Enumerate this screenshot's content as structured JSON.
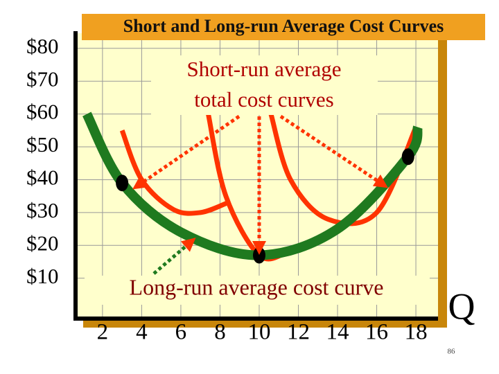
{
  "chart_data": {
    "type": "line",
    "title": "Short and Long-run Average Cost Curves",
    "x_label": "Q",
    "annotations": {
      "short_run": [
        "Short-run average",
        "total cost curves"
      ],
      "long_run": "Long-run average cost curve"
    },
    "page_number": "86",
    "xlim": [
      0.73,
      19.13
    ],
    "ylim": [
      -2.3,
      84.6
    ],
    "xticks": [
      2,
      4,
      6,
      8,
      10,
      12,
      14,
      16,
      18
    ],
    "yticks": [
      {
        "value": 80,
        "label": "$80"
      },
      {
        "value": 70,
        "label": "$70"
      },
      {
        "value": 60,
        "label": "$60"
      },
      {
        "value": 50,
        "label": "$50"
      },
      {
        "value": 40,
        "label": "$40"
      },
      {
        "value": 30,
        "label": "$30"
      },
      {
        "value": 20,
        "label": "$20"
      },
      {
        "value": 10,
        "label": "$10"
      }
    ],
    "grid": true,
    "series": [
      {
        "color": "#ff3300",
        "x": [
          3,
          4,
          5.6,
          7,
          8.4
        ],
        "values": [
          55,
          40,
          31,
          30,
          33
        ]
      },
      {
        "color": "#ff3300",
        "x": [
          7.4,
          8.3,
          10,
          11.5,
          12.6
        ],
        "values": [
          60,
          35,
          17,
          18,
          21
        ]
      },
      {
        "color": "#ff3300",
        "x": [
          10.6,
          11.6,
          13.5,
          16,
          18
        ],
        "values": [
          60,
          40,
          28,
          30,
          56
        ]
      },
      {
        "color": "#1f7a1f",
        "x": [
          1.2,
          3,
          6,
          10,
          14,
          17.6,
          18.1
        ],
        "values": [
          60,
          39,
          24,
          17,
          25,
          47,
          56
        ]
      }
    ],
    "dots": {
      "color": "#000000",
      "x": [
        3,
        10,
        17.6
      ],
      "values": [
        39,
        17,
        47
      ]
    }
  }
}
